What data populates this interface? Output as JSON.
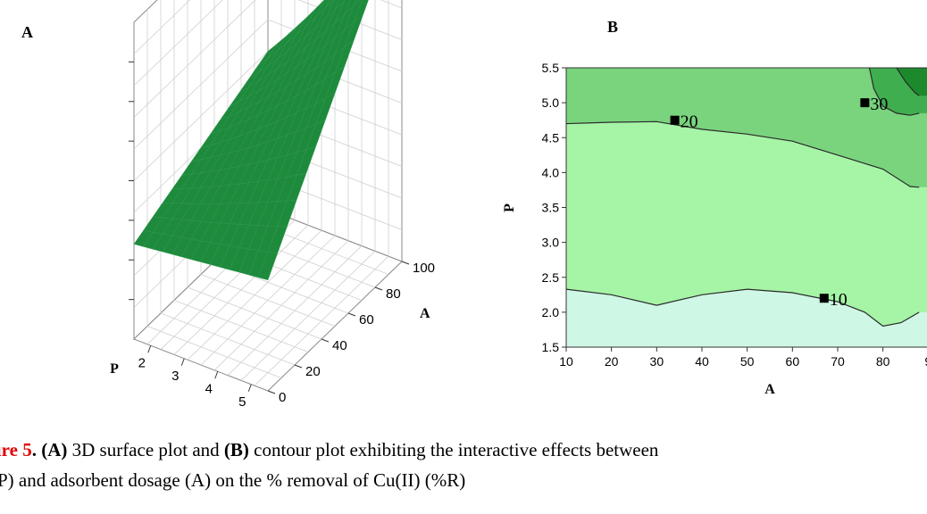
{
  "figure": {
    "panel_a_letter": "A",
    "panel_b_letter": "B",
    "caption": {
      "label": "ure 5",
      "line1_a": ". ",
      "panel_a_ref": "(A)",
      "line1_b": " 3D surface plot and ",
      "panel_b_ref": "(B)",
      "line1_c": " contour plot exhibiting the interactive effects between",
      "line2": "(P) and adsorbent dosage (A) on the % removal  of Cu(II) (%R)"
    }
  },
  "chart_data": [
    {
      "type": "surface",
      "panel": "A",
      "xlabel": "P",
      "ylabel": "A",
      "zlabel": "",
      "x_ticks": [
        "2",
        "3",
        "4",
        "5"
      ],
      "y_ticks": [
        "0",
        "20",
        "40",
        "60",
        "80",
        "100"
      ],
      "xlim": [
        1.5,
        5.5
      ],
      "ylim": [
        0,
        100
      ],
      "corner_heights_normalized": {
        "P_low_A_low": 0.3,
        "P_high_A_low": 0.35,
        "P_low_A_high": 0.5,
        "P_high_A_high": 1.0
      },
      "surface_color": "#1e8a3c",
      "grid": true
    },
    {
      "type": "contour",
      "panel": "B",
      "xlabel": "A",
      "ylabel": "P",
      "xlim": [
        10,
        100
      ],
      "ylim": [
        1.5,
        5.5
      ],
      "x_ticks": [
        "10",
        "20",
        "30",
        "40",
        "50",
        "60",
        "70",
        "80",
        "9"
      ],
      "y_ticks": [
        "1.5",
        "2.0",
        "2.5",
        "3.0",
        "3.5",
        "4.0",
        "4.5",
        "5.0",
        "5.5"
      ],
      "contours": [
        {
          "level": "10",
          "label_at": [
            67,
            2.2
          ],
          "path": [
            [
              10,
              2.33
            ],
            [
              20,
              2.25
            ],
            [
              30,
              2.1
            ],
            [
              40,
              2.25
            ],
            [
              50,
              2.33
            ],
            [
              60,
              2.28
            ],
            [
              70,
              2.15
            ],
            [
              76,
              2.0
            ],
            [
              80,
              1.8
            ],
            [
              84,
              1.85
            ],
            [
              88,
              2.0
            ]
          ]
        },
        {
          "level": "20",
          "label_at": [
            34,
            4.75
          ],
          "path": [
            [
              10,
              4.7
            ],
            [
              20,
              4.72
            ],
            [
              30,
              4.73
            ],
            [
              40,
              4.62
            ],
            [
              50,
              4.55
            ],
            [
              60,
              4.45
            ],
            [
              70,
              4.25
            ],
            [
              80,
              4.05
            ],
            [
              86,
              3.8
            ],
            [
              88,
              3.79
            ]
          ]
        },
        {
          "level": "30",
          "label_at": [
            76,
            5.0
          ],
          "path": [
            [
              77,
              5.5
            ],
            [
              78,
              5.2
            ],
            [
              80,
              4.95
            ],
            [
              83,
              4.85
            ],
            [
              86,
              4.82
            ],
            [
              88,
              4.85
            ]
          ]
        },
        {
          "level": "",
          "path": [
            [
              83,
              5.5
            ],
            [
              85,
              5.3
            ],
            [
              87,
              5.15
            ],
            [
              88,
              5.1
            ]
          ]
        }
      ],
      "region_colors": [
        "#cff7e6",
        "#a6f5a6",
        "#7ad47e",
        "#3fae4e",
        "#1c8a2c"
      ]
    }
  ]
}
